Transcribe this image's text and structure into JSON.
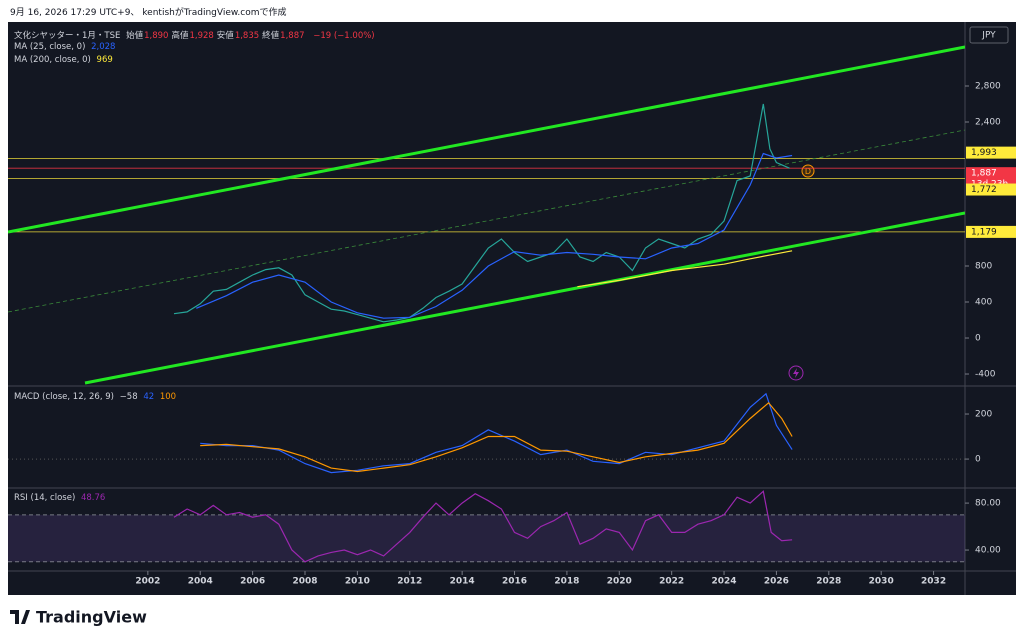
{
  "header": {
    "text": "9月 16, 2026 17:29 UTC+9、 kentishがTradingView.comで作成"
  },
  "footer": {
    "logo": "TradingView"
  },
  "chart_data": [
    {
      "type": "line",
      "title": "文化シヤッター・1月・TSE",
      "currency": "JPY",
      "ohlc": [
        {
          "label": "始値",
          "value": "1,890"
        },
        {
          "label": "高値",
          "value": "1,928"
        },
        {
          "label": "安値",
          "value": "1,835"
        },
        {
          "label": "終値",
          "value": "1,887"
        }
      ],
      "change": "−19 (−1.00%)",
      "xlim": [
        1996.66,
        2033.2
      ],
      "ylim": [
        -522,
        3511
      ],
      "yticks": [
        -400,
        0,
        400,
        800,
        {
          "value": 2400,
          "label": "2,400"
        },
        {
          "value": 2800,
          "label": "2,800"
        }
      ],
      "series": [
        {
          "color": "#26a69a",
          "x": [
            2003.0,
            2003.5,
            2004.0,
            2004.5,
            2005.0,
            2005.5,
            2006.0,
            2006.5,
            2007.0,
            2007.5,
            2008.0,
            2008.5,
            2009.0,
            2009.5,
            2010.0,
            2010.5,
            2011.0,
            2011.5,
            2012.0,
            2012.5,
            2013.0,
            2013.5,
            2014.0,
            2014.5,
            2015.0,
            2015.5,
            2016.0,
            2016.5,
            2017.0,
            2017.5,
            2018.0,
            2018.5,
            2019.0,
            2019.5,
            2020.0,
            2020.5,
            2021.0,
            2021.5,
            2022.0,
            2022.5,
            2023.0,
            2023.5,
            2024.0,
            2024.5,
            2025.0,
            2025.5,
            2025.75,
            2026.0,
            2026.5
          ],
          "values": [
            270,
            290,
            380,
            520,
            540,
            620,
            700,
            760,
            780,
            700,
            480,
            400,
            320,
            300,
            260,
            220,
            180,
            200,
            230,
            330,
            450,
            520,
            600,
            800,
            1000,
            1100,
            950,
            850,
            900,
            950,
            1100,
            900,
            850,
            950,
            900,
            750,
            1000,
            1100,
            1050,
            1000,
            1100,
            1150,
            1300,
            1750,
            1800,
            2600,
            2100,
            1950,
            1887
          ]
        },
        {
          "name": "MA (25, close, 0)",
          "value_label": "2,028",
          "color": "#2962ff",
          "x": [
            2003.85,
            2005,
            2006,
            2007,
            2008,
            2009,
            2010,
            2011,
            2012,
            2013,
            2014,
            2015,
            2016,
            2017,
            2018,
            2019,
            2020,
            2021,
            2022,
            2023,
            2024,
            2025,
            2025.5,
            2026,
            2026.6
          ],
          "values": [
            330,
            470,
            620,
            700,
            620,
            400,
            280,
            220,
            230,
            350,
            530,
            800,
            960,
            920,
            950,
            930,
            900,
            880,
            1000,
            1050,
            1200,
            1700,
            2050,
            2000,
            2028
          ]
        },
        {
          "name": "MA (200, close, 0)",
          "value_label": "969",
          "color": "#ffeb3b",
          "x": [
            2018.4,
            2020,
            2022,
            2024,
            2025,
            2026.6
          ],
          "values": [
            570,
            640,
            750,
            820,
            880,
            969
          ]
        }
      ],
      "trend_lines": [
        {
          "x": [
            1996.66,
            2033.2
          ],
          "values": [
            1178,
            3233
          ],
          "color": "#22e822",
          "dashed": false
        },
        {
          "x": [
            1999.6,
            2033.2
          ],
          "values": [
            -500,
            1389
          ],
          "color": "#22e822",
          "dashed": false
        },
        {
          "x": [
            1996.66,
            2033.2
          ],
          "values": [
            289,
            2311
          ],
          "color": "#3a8a3a",
          "dashed": true
        }
      ],
      "levels": [
        {
          "value": 1993,
          "label": "1,993",
          "color": "#ffeb3b"
        },
        {
          "value": 1887,
          "label": "1,887",
          "color": "#f23645",
          "countdown": "13d 23h"
        },
        {
          "value": 1772,
          "label": "1,772",
          "color": "#ffeb3b"
        },
        {
          "value": 1179,
          "label": "1,179",
          "color": "#ffeb3b"
        }
      ]
    },
    {
      "type": "line",
      "title": "MACD (close, 12, 26, 9)",
      "histogram_label": "−58",
      "xlim": [
        1996.66,
        2033.2
      ],
      "ylim": [
        -124,
        320
      ],
      "yticks": [
        0,
        200
      ],
      "baseline": 0,
      "series": [
        {
          "value_label": "42",
          "color": "#2962ff",
          "x": [
            2004,
            2005,
            2006,
            2007,
            2008,
            2009,
            2010,
            2011,
            2012,
            2013,
            2014,
            2015,
            2016,
            2017,
            2018,
            2019,
            2020,
            2021,
            2022,
            2023,
            2024,
            2025,
            2025.6,
            2026,
            2026.6
          ],
          "values": [
            70,
            60,
            60,
            40,
            -20,
            -60,
            -50,
            -30,
            -20,
            30,
            60,
            130,
            80,
            20,
            40,
            -10,
            -20,
            30,
            20,
            50,
            80,
            230,
            290,
            150,
            42
          ]
        },
        {
          "value_label": "100",
          "color": "#ff9800",
          "x": [
            2004,
            2005,
            2006,
            2007,
            2008,
            2009,
            2010,
            2011,
            2012,
            2013,
            2014,
            2015,
            2016,
            2017,
            2018,
            2019,
            2020,
            2021,
            2022,
            2023,
            2024,
            2025,
            2025.7,
            2026.2,
            2026.6
          ],
          "values": [
            60,
            65,
            55,
            45,
            10,
            -40,
            -55,
            -40,
            -25,
            10,
            50,
            100,
            100,
            40,
            35,
            10,
            -15,
            10,
            25,
            40,
            70,
            180,
            250,
            180,
            100
          ]
        }
      ]
    },
    {
      "type": "line",
      "title": "RSI (14, close)",
      "xlim": [
        1996.66,
        2033.2
      ],
      "ylim": [
        23,
        92
      ],
      "yticks": [
        {
          "value": 40,
          "label": "40.00"
        },
        {
          "value": 80,
          "label": "80.00"
        }
      ],
      "band": [
        30,
        70
      ],
      "xticks": [
        2002,
        2004,
        2006,
        2008,
        2010,
        2012,
        2014,
        2016,
        2018,
        2020,
        2022,
        2024,
        2026,
        2028,
        2030,
        2032
      ],
      "series": [
        {
          "value_label": "48.76",
          "color": "#9c27b0",
          "x": [
            2003,
            2003.5,
            2004,
            2004.5,
            2005,
            2005.5,
            2006,
            2006.5,
            2007,
            2007.5,
            2008,
            2008.5,
            2009,
            2009.5,
            2010,
            2010.5,
            2011,
            2011.5,
            2012,
            2012.5,
            2013,
            2013.5,
            2014,
            2014.5,
            2015,
            2015.5,
            2016,
            2016.5,
            2017,
            2017.5,
            2018,
            2018.5,
            2019,
            2019.5,
            2020,
            2020.5,
            2021,
            2021.5,
            2022,
            2022.5,
            2023,
            2023.5,
            2024,
            2024.5,
            2025,
            2025.5,
            2025.8,
            2026.2,
            2026.6
          ],
          "values": [
            68,
            75,
            70,
            78,
            70,
            72,
            68,
            70,
            62,
            40,
            30,
            35,
            38,
            40,
            36,
            40,
            35,
            45,
            55,
            68,
            80,
            70,
            80,
            88,
            82,
            75,
            55,
            50,
            60,
            65,
            72,
            45,
            50,
            58,
            55,
            40,
            65,
            70,
            55,
            55,
            62,
            65,
            70,
            85,
            80,
            90,
            55,
            48,
            48.76
          ]
        }
      ]
    }
  ]
}
